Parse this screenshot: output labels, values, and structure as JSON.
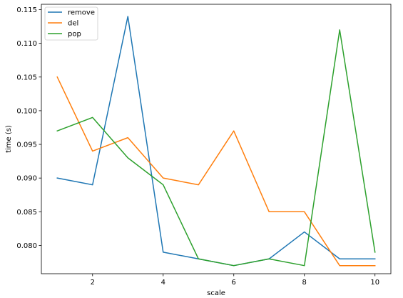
{
  "chart_data": {
    "type": "line",
    "title": "",
    "xlabel": "scale",
    "ylabel": "time (s)",
    "x": [
      1,
      2,
      3,
      4,
      5,
      6,
      7,
      8,
      9,
      10
    ],
    "xlim": [
      0.55,
      10.45
    ],
    "ylim": [
      0.0758,
      0.1158
    ],
    "xticks": [
      2,
      4,
      6,
      8,
      10
    ],
    "xtick_labels": [
      "2",
      "4",
      "6",
      "8",
      "10"
    ],
    "yticks": [
      0.08,
      0.085,
      0.09,
      0.095,
      0.1,
      0.105,
      0.11,
      0.115
    ],
    "ytick_labels": [
      "0.080",
      "0.085",
      "0.090",
      "0.095",
      "0.100",
      "0.105",
      "0.110",
      "0.115"
    ],
    "grid": false,
    "legend_position": "top-left",
    "series": [
      {
        "name": "remove",
        "color": "#1f77b4",
        "values": [
          0.09,
          0.089,
          0.114,
          0.079,
          0.078,
          0.077,
          0.078,
          0.082,
          0.078,
          0.078
        ]
      },
      {
        "name": "del",
        "color": "#ff7f0e",
        "values": [
          0.105,
          0.094,
          0.096,
          0.09,
          0.089,
          0.097,
          0.085,
          0.085,
          0.077,
          0.077
        ]
      },
      {
        "name": "pop",
        "color": "#2ca02c",
        "values": [
          0.097,
          0.099,
          0.093,
          0.089,
          0.078,
          0.077,
          0.078,
          0.077,
          0.112,
          0.079
        ]
      }
    ]
  }
}
